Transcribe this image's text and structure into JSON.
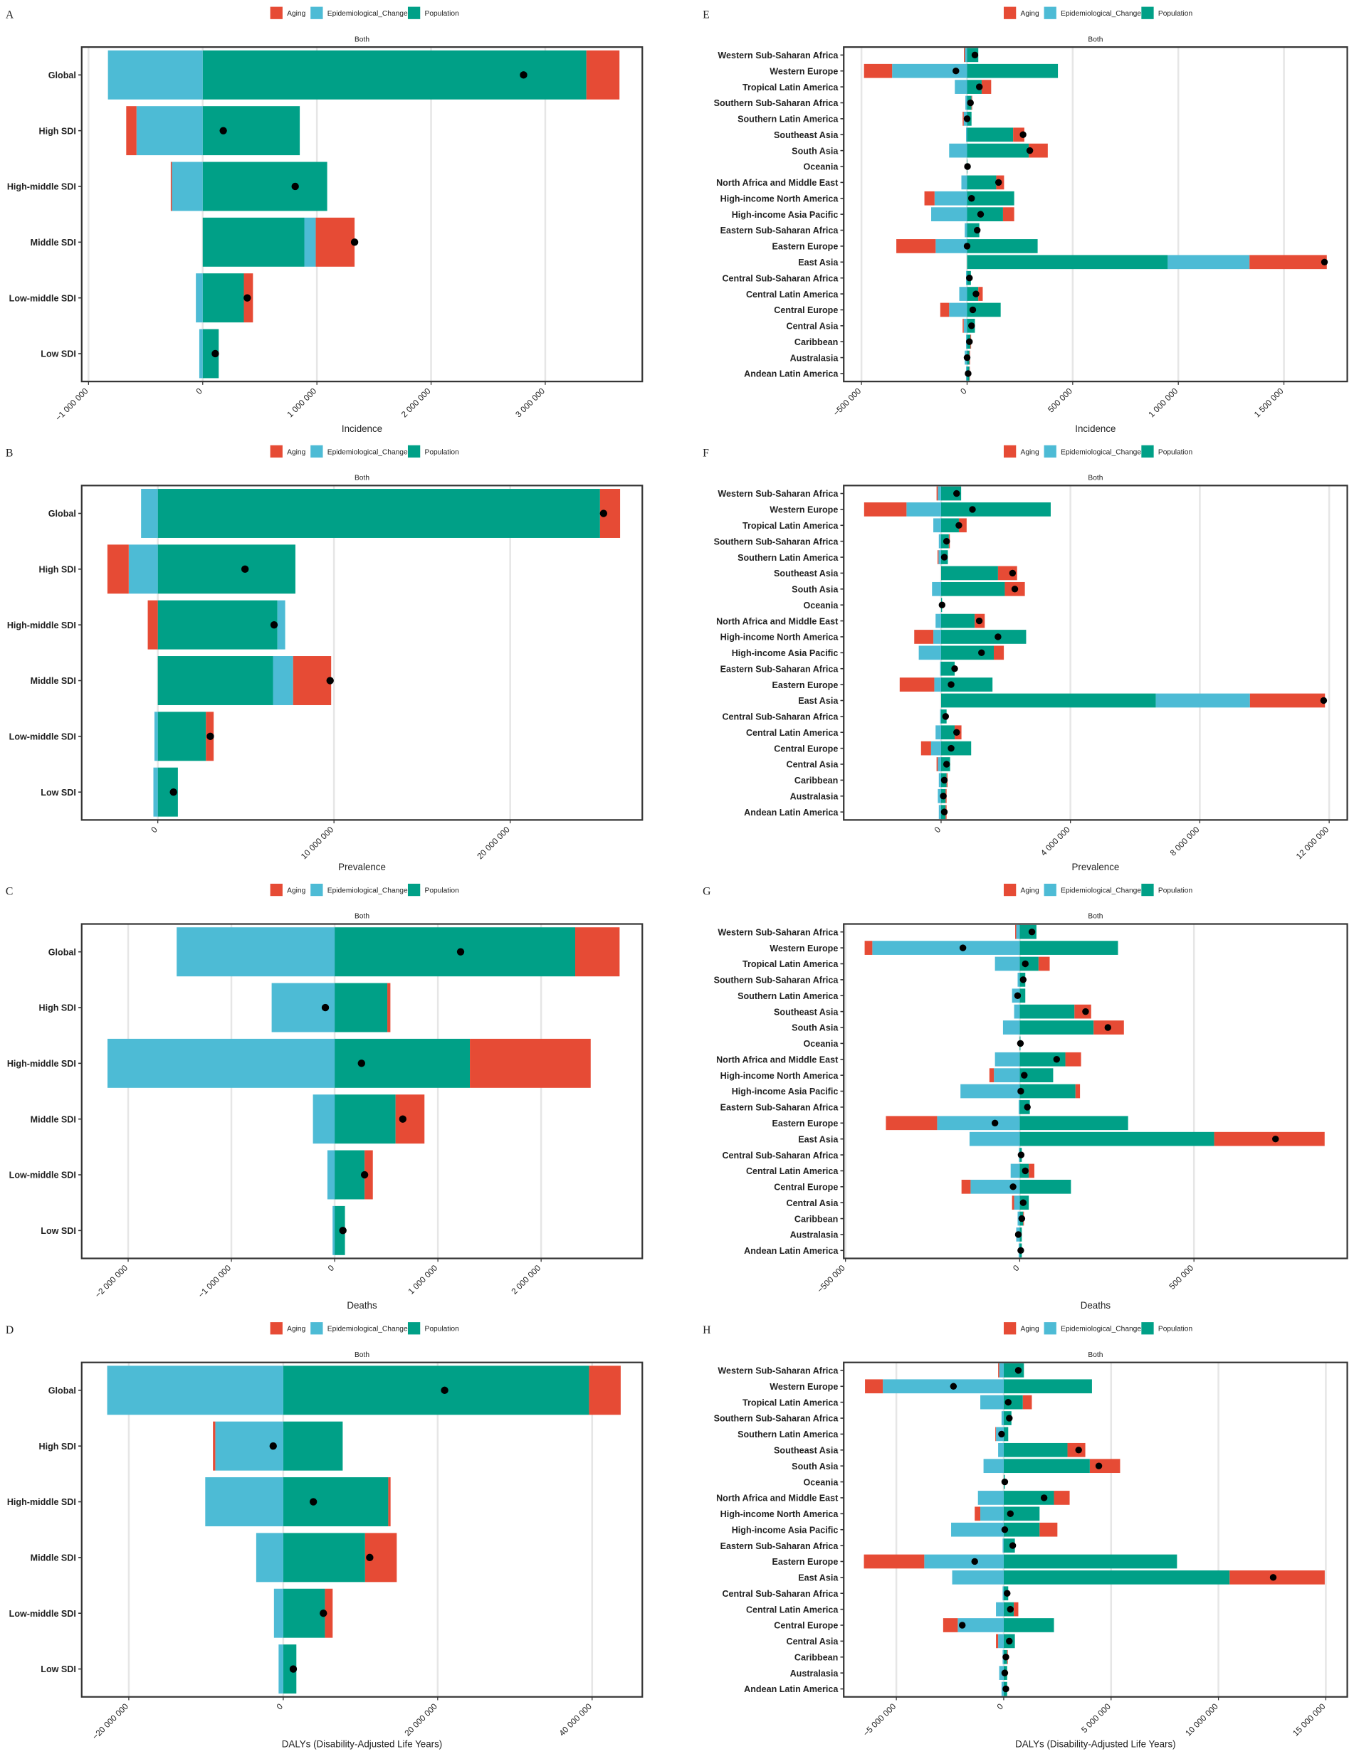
{
  "chart_data": [
    {
      "type": "bar",
      "orientation": "horizontal",
      "panel": "A",
      "facet": "Both",
      "x_label": "Incidence",
      "legend": "top",
      "grid": true,
      "categories": [
        "Global",
        "High SDI",
        "High-middle SDI",
        "Middle SDI",
        "Low-middle SDI",
        "Low SDI"
      ],
      "series": [
        {
          "name": "Aging",
          "color": "#E64B35",
          "values": [
            290000,
            -90000,
            -10000,
            340000,
            80000,
            0
          ]
        },
        {
          "name": "Epidemiological_Change",
          "color": "#4DBBD5",
          "values": [
            -830000,
            -580000,
            -270000,
            100000,
            -60000,
            -30000
          ]
        },
        {
          "name": "Population",
          "color": "#00A087",
          "values": [
            3360000,
            850000,
            1090000,
            890000,
            360000,
            140000
          ]
        }
      ],
      "totals": [
        2810000,
        180000,
        810000,
        1330000,
        390000,
        110000
      ],
      "xlim": [
        -1060000,
        3850000
      ],
      "xticks": [
        {
          "value": -1000000,
          "label": "−1 000 000"
        },
        0,
        {
          "value": 1000000,
          "label": "1 000 000"
        },
        {
          "value": 2000000,
          "label": "2 000 000"
        },
        {
          "value": 3000000,
          "label": "3 000 000"
        }
      ]
    },
    {
      "type": "bar",
      "orientation": "horizontal",
      "panel": "B",
      "facet": "Both",
      "x_label": "Prevalence",
      "legend": "top",
      "grid": true,
      "categories": [
        "Global",
        "High SDI",
        "High-middle SDI",
        "Middle SDI",
        "Low-middle SDI",
        "Low SDI"
      ],
      "series": [
        {
          "name": "Aging",
          "color": "#E64B35",
          "values": [
            1140000,
            -1210000,
            -570000,
            2160000,
            440000,
            0
          ]
        },
        {
          "name": "Epidemiological_Change",
          "color": "#4DBBD5",
          "values": [
            -950000,
            -1650000,
            440000,
            1140000,
            -190000,
            -250000
          ]
        },
        {
          "name": "Population",
          "color": "#00A087",
          "values": [
            25100000,
            7810000,
            6790000,
            6540000,
            2730000,
            1140000
          ]
        }
      ],
      "totals": [
        25300000,
        4950000,
        6600000,
        9780000,
        2980000,
        890000
      ],
      "xlim": [
        -4320000,
        27500000
      ],
      "xticks": [
        0,
        {
          "value": 10000000,
          "label": "10 000 000"
        },
        {
          "value": 20000000,
          "label": "20 000 000"
        }
      ]
    },
    {
      "type": "bar",
      "orientation": "horizontal",
      "panel": "C",
      "facet": "Both",
      "x_label": "Deaths",
      "legend": "top",
      "grid": true,
      "categories": [
        "Global",
        "High SDI",
        "High-middle SDI",
        "Middle SDI",
        "Low-middle SDI",
        "Low SDI"
      ],
      "series": [
        {
          "name": "Aging",
          "color": "#E64B35",
          "values": [
            430000,
            30000,
            1170000,
            280000,
            80000,
            0
          ]
        },
        {
          "name": "Epidemiological_Change",
          "color": "#4DBBD5",
          "values": [
            -1530000,
            -610000,
            -2200000,
            -210000,
            -70000,
            -20000
          ]
        },
        {
          "name": "Population",
          "color": "#00A087",
          "values": [
            2330000,
            510000,
            1310000,
            590000,
            290000,
            100000
          ]
        }
      ],
      "totals": [
        1220000,
        -90000,
        260000,
        660000,
        290000,
        80000
      ],
      "xlim": [
        -2450000,
        2980000
      ],
      "xticks": [
        {
          "value": -2000000,
          "label": "−2 000 000"
        },
        {
          "value": -1000000,
          "label": "−1 000 000"
        },
        0,
        {
          "value": 1000000,
          "label": "1 000 000"
        },
        {
          "value": 2000000,
          "label": "2 000 000"
        }
      ]
    },
    {
      "type": "bar",
      "orientation": "horizontal",
      "panel": "D",
      "facet": "Both",
      "x_label": "DALYs (Disability-Adjusted Life Years)",
      "legend": "top",
      "grid": true,
      "categories": [
        "Global",
        "High SDI",
        "High-middle SDI",
        "Middle SDI",
        "Low-middle SDI",
        "Low SDI"
      ],
      "series": [
        {
          "name": "Aging",
          "color": "#E64B35",
          "values": [
            4100000,
            -300000,
            300000,
            4100000,
            1000000,
            0
          ]
        },
        {
          "name": "Epidemiological_Change",
          "color": "#4DBBD5",
          "values": [
            -22800000,
            -8800000,
            -10100000,
            -3500000,
            -1200000,
            -600000
          ]
        },
        {
          "name": "Population",
          "color": "#00A087",
          "values": [
            39600000,
            7700000,
            13600000,
            10600000,
            5400000,
            1700000
          ]
        }
      ],
      "totals": [
        20900000,
        -1300000,
        3900000,
        11200000,
        5200000,
        1300000
      ],
      "xlim": [
        -26100000,
        46500000
      ],
      "xticks": [
        {
          "value": -20000000,
          "label": "−20 000 000"
        },
        0,
        {
          "value": 20000000,
          "label": "20 000 000"
        },
        {
          "value": 40000000,
          "label": "40 000 000"
        }
      ]
    },
    {
      "type": "bar",
      "orientation": "horizontal",
      "panel": "E",
      "facet": "Both",
      "x_label": "Incidence",
      "legend": "top",
      "grid": true,
      "categories": [
        "Western Sub-Saharan Africa",
        "Western Europe",
        "Tropical Latin America",
        "Southern Sub-Saharan Africa",
        "Southern Latin America",
        "Southeast Asia",
        "South Asia",
        "Oceania",
        "North Africa and Middle East",
        "High-income North America",
        "High-income Asia Pacific",
        "Eastern Sub-Saharan Africa",
        "Eastern Europe",
        "East Asia",
        "Central Sub-Saharan Africa",
        "Central Latin America",
        "Central Europe",
        "Central Asia",
        "Caribbean",
        "Australasia",
        "Andean Latin America"
      ],
      "series": [
        {
          "name": "Aging",
          "color": "#E64B35",
          "values": [
            -5000,
            -133000,
            45000,
            3000,
            -5000,
            53000,
            90000,
            0,
            37000,
            -48000,
            53000,
            0,
            -186000,
            366000,
            0,
            21000,
            -42000,
            -5000,
            3000,
            3000,
            2000
          ]
        },
        {
          "name": "Epidemiological_Change",
          "color": "#4DBBD5",
          "values": [
            -10000,
            -355000,
            -58000,
            -8000,
            -16000,
            -5000,
            -85000,
            0,
            -27000,
            -154000,
            -170000,
            -11000,
            -149000,
            387000,
            -5000,
            -37000,
            -85000,
            -16000,
            -5000,
            -11000,
            -5000
          ]
        },
        {
          "name": "Population",
          "color": "#00A087",
          "values": [
            53000,
            430000,
            69000,
            21000,
            21000,
            218000,
            292000,
            2000,
            138000,
            223000,
            170000,
            58000,
            334000,
            950000,
            18000,
            53000,
            159000,
            37000,
            16000,
            11000,
            11000
          ]
        }
      ],
      "totals": [
        37000,
        -53000,
        58000,
        16000,
        0,
        265000,
        297000,
        2000,
        149000,
        21000,
        64000,
        48000,
        0,
        1692000,
        11000,
        42000,
        27000,
        21000,
        11000,
        0,
        5000
      ],
      "xlim": [
        -584000,
        1800000
      ],
      "xticks": [
        {
          "value": -500000,
          "label": "−500 000"
        },
        0,
        {
          "value": 500000,
          "label": "500 000"
        },
        {
          "value": 1000000,
          "label": "1 000 000"
        },
        {
          "value": 1500000,
          "label": "1 500 000"
        }
      ]
    },
    {
      "type": "bar",
      "orientation": "horizontal",
      "panel": "F",
      "facet": "Both",
      "x_label": "Prevalence",
      "legend": "top",
      "grid": true,
      "categories": [
        "Western Sub-Saharan Africa",
        "Western Europe",
        "Tropical Latin America",
        "Southern Sub-Saharan Africa",
        "Southern Latin America",
        "Southeast Asia",
        "South Asia",
        "Oceania",
        "North Africa and Middle East",
        "High-income North America",
        "High-income Asia Pacific",
        "Eastern Sub-Saharan Africa",
        "Eastern Europe",
        "East Asia",
        "Central Sub-Saharan Africa",
        "Central Latin America",
        "Central Europe",
        "Central Asia",
        "Caribbean",
        "Australasia",
        "Andean Latin America"
      ],
      "series": [
        {
          "name": "Aging",
          "color": "#E64B35",
          "values": [
            -40000,
            -1310000,
            240000,
            30000,
            -30000,
            590000,
            620000,
            0,
            310000,
            -590000,
            310000,
            0,
            -1070000,
            2320000,
            0,
            210000,
            -310000,
            -40000,
            30000,
            30000,
            30000
          ]
        },
        {
          "name": "Epidemiological_Change",
          "color": "#4DBBD5",
          "values": [
            -100000,
            -1070000,
            -240000,
            -70000,
            -80000,
            0,
            -280000,
            0,
            -170000,
            -240000,
            -690000,
            -30000,
            -210000,
            2910000,
            -30000,
            -170000,
            -310000,
            -100000,
            -70000,
            -100000,
            -70000
          ]
        },
        {
          "name": "Population",
          "color": "#00A087",
          "values": [
            620000,
            3390000,
            550000,
            240000,
            210000,
            1760000,
            1970000,
            30000,
            1040000,
            2630000,
            1630000,
            420000,
            1590000,
            6640000,
            170000,
            420000,
            930000,
            280000,
            170000,
            140000,
            140000
          ]
        }
      ],
      "totals": [
        480000,
        970000,
        550000,
        170000,
        100000,
        2210000,
        2280000,
        30000,
        1180000,
        1760000,
        1250000,
        420000,
        310000,
        11830000,
        140000,
        480000,
        310000,
        170000,
        100000,
        70000,
        100000
      ],
      "xlim": [
        -3010000,
        12560000
      ],
      "xticks": [
        0,
        {
          "value": 4000000,
          "label": "4 000 000"
        },
        {
          "value": 8000000,
          "label": "8 000 000"
        },
        {
          "value": 12000000,
          "label": "12 000 000"
        }
      ]
    },
    {
      "type": "bar",
      "orientation": "horizontal",
      "panel": "G",
      "facet": "Both",
      "x_label": "Deaths",
      "legend": "top",
      "grid": true,
      "categories": [
        "Western Sub-Saharan Africa",
        "Western Europe",
        "Tropical Latin America",
        "Southern Sub-Saharan Africa",
        "Southern Latin America",
        "Southeast Asia",
        "South Asia",
        "Oceania",
        "North Africa and Middle East",
        "High-income North America",
        "High-income Asia Pacific",
        "Eastern Sub-Saharan Africa",
        "Eastern Europe",
        "East Asia",
        "Central Sub-Saharan Africa",
        "Central Latin America",
        "Central Europe",
        "Central Asia",
        "Caribbean",
        "Australasia",
        "Andean Latin America"
      ],
      "series": [
        {
          "name": "Aging",
          "color": "#E64B35",
          "values": [
            -3000,
            -22000,
            32000,
            0,
            0,
            48000,
            87000,
            0,
            45000,
            -13000,
            13000,
            0,
            -147000,
            317000,
            0,
            16000,
            -26000,
            -6000,
            2000,
            0,
            0
          ]
        },
        {
          "name": "Epidemiological_Change",
          "color": "#4DBBD5",
          "values": [
            -10000,
            -423000,
            -71000,
            -6000,
            -22000,
            -16000,
            -48000,
            0,
            -71000,
            -74000,
            -170000,
            -3000,
            -237000,
            -144000,
            -2000,
            -26000,
            -141000,
            -16000,
            -6000,
            -10000,
            -3000
          ]
        },
        {
          "name": "Population",
          "color": "#00A087",
          "values": [
            48000,
            282000,
            54000,
            16000,
            16000,
            157000,
            212000,
            2000,
            131000,
            96000,
            160000,
            29000,
            311000,
            558000,
            6000,
            26000,
            147000,
            26000,
            10000,
            6000,
            6000
          ]
        }
      ],
      "totals": [
        35000,
        -163000,
        16000,
        10000,
        -6000,
        189000,
        253000,
        2000,
        106000,
        13000,
        3000,
        22000,
        -71000,
        734000,
        4000,
        16000,
        -19000,
        10000,
        6000,
        -4000,
        3000
      ],
      "xlim": [
        -505000,
        940000
      ],
      "xticks": [
        {
          "value": -500000,
          "label": "−500 000"
        },
        0,
        {
          "value": 500000,
          "label": "500 000"
        }
      ]
    },
    {
      "type": "bar",
      "orientation": "horizontal",
      "panel": "H",
      "facet": "Both",
      "x_label": "DALYs (Disability-Adjusted Life Years)",
      "legend": "top",
      "grid": true,
      "categories": [
        "Western Sub-Saharan Africa",
        "Western Europe",
        "Tropical Latin America",
        "Southern Sub-Saharan Africa",
        "Southern Latin America",
        "Southeast Asia",
        "South Asia",
        "Oceania",
        "North Africa and Middle East",
        "High-income North America",
        "High-income Asia Pacific",
        "Eastern Sub-Saharan Africa",
        "Eastern Europe",
        "East Asia",
        "Central Sub-Saharan Africa",
        "Central Latin America",
        "Central Europe",
        "Central Asia",
        "Caribbean",
        "Australasia",
        "Andean Latin America"
      ],
      "series": [
        {
          "name": "Aging",
          "color": "#E64B35",
          "values": [
            -50000,
            -830000,
            420000,
            0,
            -30000,
            830000,
            1410000,
            0,
            730000,
            -260000,
            830000,
            0,
            -2810000,
            4430000,
            0,
            210000,
            -680000,
            -100000,
            30000,
            0,
            0
          ]
        },
        {
          "name": "Epidemiological_Change",
          "color": "#4DBBD5",
          "values": [
            -210000,
            -5630000,
            -1090000,
            -100000,
            -360000,
            -260000,
            -940000,
            0,
            -1200000,
            -1090000,
            -2450000,
            -50000,
            -3700000,
            -2400000,
            -50000,
            -360000,
            -2140000,
            -260000,
            -50000,
            -210000,
            -100000
          ]
        },
        {
          "name": "Population",
          "color": "#00A087",
          "values": [
            940000,
            4110000,
            890000,
            360000,
            210000,
            2970000,
            4010000,
            50000,
            2340000,
            1670000,
            1670000,
            520000,
            8070000,
            10520000,
            210000,
            470000,
            2340000,
            520000,
            160000,
            160000,
            160000
          ]
        }
      ],
      "totals": [
        680000,
        -2340000,
        210000,
        260000,
        -100000,
        3490000,
        4430000,
        50000,
        1880000,
        310000,
        50000,
        420000,
        -1350000,
        12550000,
        160000,
        310000,
        -1930000,
        260000,
        100000,
        50000,
        100000
      ],
      "xlim": [
        -7450000,
        16000000
      ],
      "xticks": [
        {
          "value": -5000000,
          "label": "−5 000 000"
        },
        0,
        {
          "value": 5000000,
          "label": "5 000 000"
        },
        {
          "value": 10000000,
          "label": "10 000 000"
        },
        {
          "value": 15000000,
          "label": "15 000 000"
        }
      ]
    }
  ]
}
